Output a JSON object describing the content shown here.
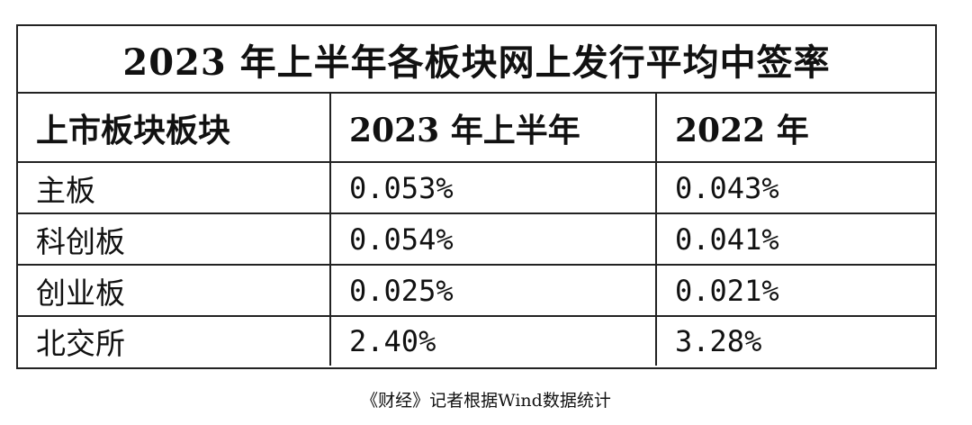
{
  "table": {
    "title": "2023 年上半年各板块网上发行平均中签率",
    "headers": [
      "上市板块板块",
      "2023 年上半年",
      "2022 年"
    ],
    "rows": [
      [
        "主板",
        "0.053%",
        "0.043%"
      ],
      [
        "科创板",
        "0.054%",
        "0.041%"
      ],
      [
        "创业板",
        "0.025%",
        "0.021%"
      ],
      [
        "北交所",
        "2.40%",
        "3.28%"
      ]
    ]
  },
  "caption": "《财经》记者根据Wind数据统计"
}
